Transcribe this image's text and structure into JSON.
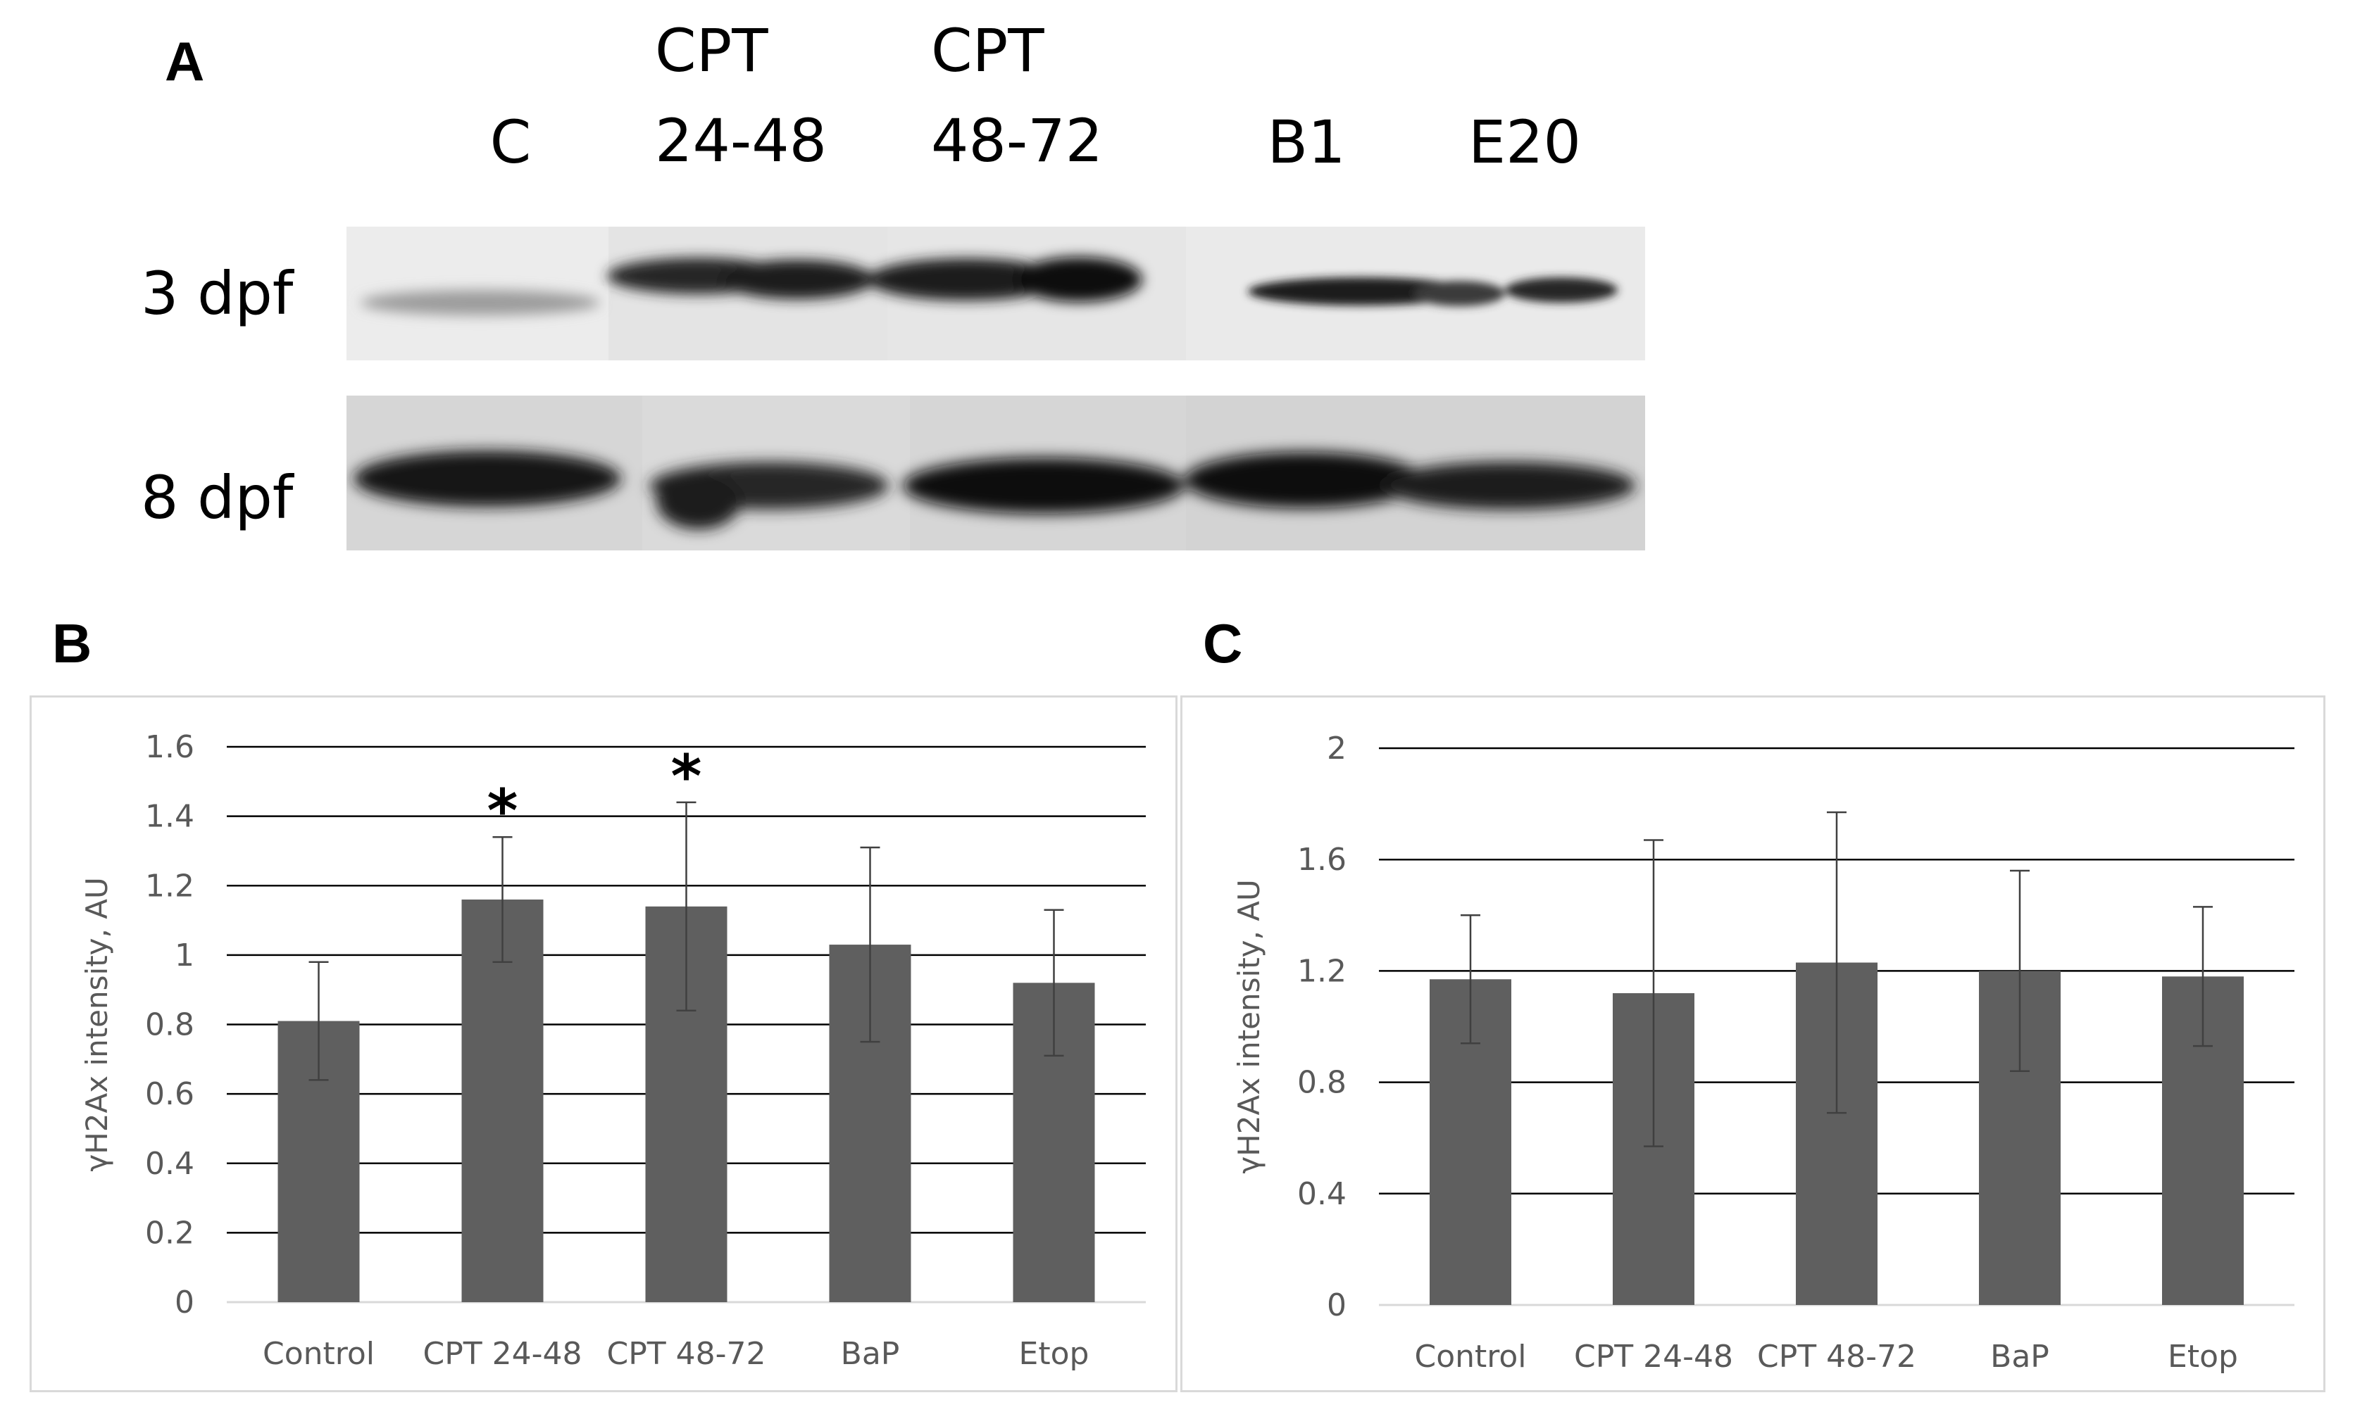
{
  "panel_a": {
    "letter": "A",
    "lanes": [
      {
        "line1": "",
        "line2": "C"
      },
      {
        "line1": "CPT",
        "line2": "24-48"
      },
      {
        "line1": "CPT",
        "line2": "48-72"
      },
      {
        "line1": "",
        "line2": "B1"
      },
      {
        "line1": "",
        "line2": "E20"
      }
    ],
    "rows": [
      "3 dpf",
      "8 dpf"
    ]
  },
  "chart_data": [
    {
      "panel": "B",
      "type": "bar",
      "categories": [
        "Control",
        "CPT 24-48",
        "CPT 48-72",
        "BaP",
        "Etop"
      ],
      "values": [
        0.81,
        1.16,
        1.14,
        1.03,
        0.92
      ],
      "errors": [
        0.17,
        0.18,
        0.3,
        0.28,
        0.21
      ],
      "significance": [
        "",
        "*",
        "*",
        "",
        ""
      ],
      "ylabel": "γH2Ax intensity, AU",
      "ylim": [
        0,
        1.6
      ],
      "yticks": [
        0,
        0.2,
        0.4,
        0.6,
        0.8,
        1,
        1.2,
        1.4,
        1.6
      ],
      "ytick_labels": [
        "0",
        "0.2",
        "0.4",
        "0.6",
        "0.8",
        "1",
        "1.2",
        "1.4",
        "1.6"
      ],
      "grid": true,
      "bar_color": "#5f5f5f"
    },
    {
      "panel": "C",
      "type": "bar",
      "categories": [
        "Control",
        "CPT 24-48",
        "CPT 48-72",
        "BaP",
        "Etop"
      ],
      "values": [
        1.17,
        1.12,
        1.23,
        1.2,
        1.18
      ],
      "errors": [
        0.23,
        0.55,
        0.54,
        0.36,
        0.25
      ],
      "significance": [
        "",
        "",
        "",
        "",
        ""
      ],
      "ylabel": "γH2Ax intensity, AU",
      "ylim": [
        0,
        2
      ],
      "yticks": [
        0,
        0.4,
        0.8,
        1.2,
        1.6,
        2
      ],
      "ytick_labels": [
        "0",
        "0.4",
        "0.8",
        "1.2",
        "1.6",
        "2"
      ],
      "grid": true,
      "bar_color": "#5f5f5f"
    }
  ]
}
